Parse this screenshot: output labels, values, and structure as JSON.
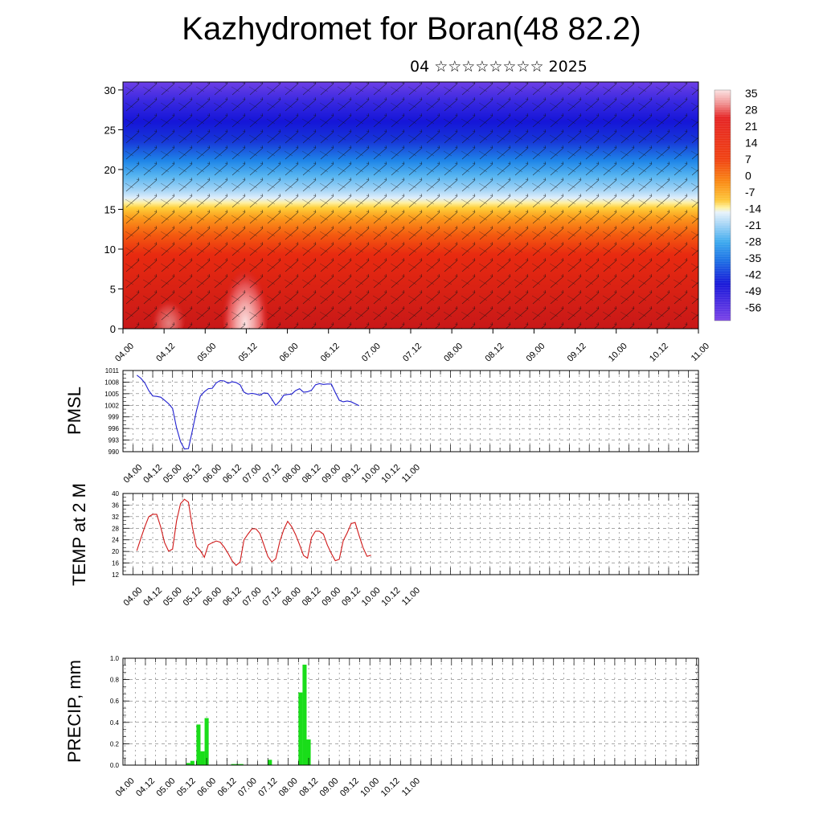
{
  "header": {
    "title": "Kazhydromet for Boran(48 82.2)",
    "subtitle": "04 ☆☆☆☆☆☆☆☆ 2025"
  },
  "time_labels": [
    "04.00",
    "04.12",
    "05.00",
    "05.12",
    "06.00",
    "06.12",
    "07.00",
    "07.12",
    "08.00",
    "08.12",
    "09.00",
    "09.12",
    "10.00",
    "10.12",
    "11.00"
  ],
  "chart_data": [
    {
      "type": "heatmap",
      "name": "cross-section",
      "x": [
        "04.00",
        "04.12",
        "05.00",
        "05.12",
        "06.00",
        "06.12",
        "07.00",
        "07.12",
        "08.00",
        "08.12",
        "09.00",
        "09.12",
        "10.00",
        "10.12",
        "11.00"
      ],
      "ylim": [
        0,
        31
      ],
      "yticks": [
        0,
        5,
        10,
        15,
        20,
        25,
        30
      ],
      "colorbar": {
        "labels": [
          "35",
          "28",
          "21",
          "14",
          "7",
          "0",
          "-7",
          "-14",
          "-21",
          "-28",
          "-35",
          "-42",
          "-49",
          "-56"
        ],
        "min": -63,
        "max": 42
      },
      "wind_barbs": true
    },
    {
      "type": "line",
      "ylabel": "PMSL",
      "ylim": [
        990,
        1011
      ],
      "yticks": [
        990,
        993,
        996,
        999,
        1002,
        1005,
        1008,
        1011
      ],
      "color": "#1f1fd0",
      "x_start": 0.1,
      "x_step": 0.1,
      "values": [
        1009.8,
        1009,
        1007.8,
        1005.8,
        1004.4,
        1004.3,
        1004.1,
        1003.3,
        1002.4,
        1001.2,
        996.2,
        992.6,
        990.7,
        990.8,
        995.5,
        1000.5,
        1004.4,
        1005.5,
        1006.3,
        1006.4,
        1007.8,
        1008.4,
        1008.3,
        1007.7,
        1008.1,
        1007.9,
        1007.3,
        1005.4,
        1004.9,
        1005.1,
        1004.9,
        1004.6,
        1005.2,
        1005.1,
        1003.6,
        1002,
        1003.1,
        1004.6,
        1004.8,
        1004.9,
        1005.8,
        1006.3,
        1005.4,
        1005.5,
        1005.9,
        1007.3,
        1007.6,
        1007.4,
        1007.5,
        1007.5,
        1005.3,
        1003.3,
        1002.9,
        1003.1,
        1002.9,
        1002.4,
        1001.9
      ]
    },
    {
      "type": "line",
      "ylabel": "TEMP at 2 M",
      "ylim": [
        12,
        40
      ],
      "yticks": [
        12,
        16,
        20,
        24,
        28,
        32,
        36,
        40
      ],
      "color": "#d01818",
      "x_start": 0.1,
      "x_step": 0.1,
      "values": [
        20.3,
        24.5,
        28.5,
        32,
        32.8,
        32.8,
        28.5,
        23,
        20.1,
        20.8,
        30.5,
        36.5,
        38,
        37,
        28.3,
        21.7,
        20.3,
        18,
        22.3,
        23,
        23.6,
        23.2,
        21.5,
        19.3,
        16.8,
        15.2,
        16.3,
        24,
        26,
        27.8,
        27.8,
        26.2,
        22.3,
        18.3,
        16.4,
        17.5,
        23.3,
        27.5,
        30.4,
        28.6,
        25.8,
        22.3,
        18.6,
        17.7,
        24.8,
        27,
        27,
        26,
        22.2,
        19.3,
        16.8,
        17.3,
        23.7,
        26.4,
        29.6,
        30,
        25.5,
        21.3,
        18.3,
        18.7
      ]
    },
    {
      "type": "bar",
      "ylabel": "PRECIP, mm",
      "ylim": [
        0,
        1.0
      ],
      "yticks": [
        "0.0",
        "0.2",
        "0.4",
        "0.6",
        "0.8",
        "1.0"
      ],
      "color": "#19dd19",
      "bar_width": 0.1,
      "x": [
        1.55,
        1.65,
        1.8,
        1.9,
        2.0,
        2.65,
        2.75,
        2.85,
        3.55,
        4.3,
        4.4,
        4.5
      ],
      "values": [
        0.02,
        0.04,
        0.38,
        0.13,
        0.44,
        0.01,
        0.01,
        0.01,
        0.05,
        0.68,
        0.94,
        0.24
      ]
    }
  ]
}
